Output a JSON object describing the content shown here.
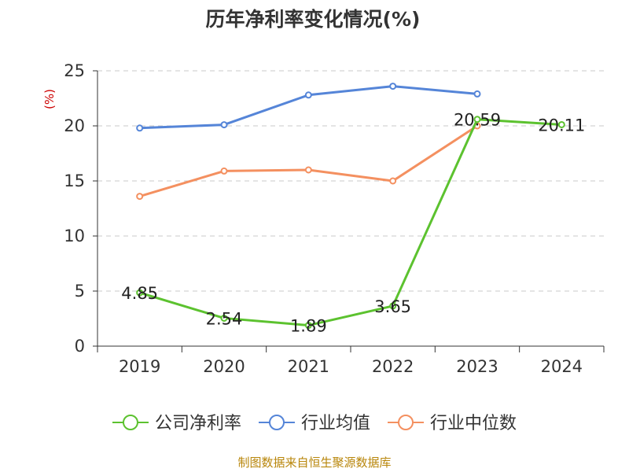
{
  "chart_data": {
    "type": "line",
    "title": "历年净利率变化情况(%)",
    "ylabel": "(%)",
    "xlabel": "",
    "categories": [
      "2019",
      "2020",
      "2021",
      "2022",
      "2023",
      "2024"
    ],
    "ylim": [
      0,
      25
    ],
    "yticks": [
      0,
      5,
      10,
      15,
      20,
      25
    ],
    "grid": true,
    "legend_position": "bottom",
    "series": [
      {
        "name": "公司净利率",
        "color": "#5cc22f",
        "values": [
          4.85,
          2.54,
          1.89,
          3.65,
          20.59,
          20.11
        ],
        "labels": [
          "4.85",
          "2.54",
          "1.89",
          "3.65",
          "20.59",
          "20.11"
        ]
      },
      {
        "name": "行业均值",
        "color": "#5585d8",
        "values": [
          19.8,
          20.1,
          22.8,
          23.6,
          22.9,
          null
        ]
      },
      {
        "name": "行业中位数",
        "color": "#f49060",
        "values": [
          13.6,
          15.9,
          16.0,
          15.0,
          20.0,
          null
        ]
      }
    ]
  },
  "source": "制图数据来自恒生聚源数据库"
}
